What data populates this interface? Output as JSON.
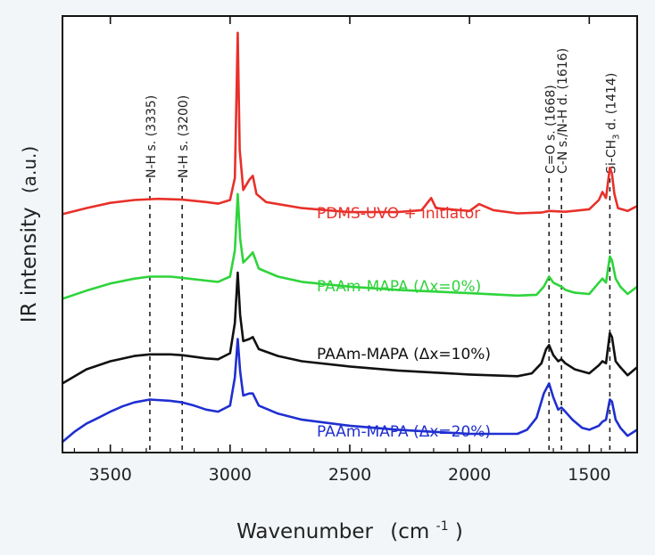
{
  "chart_data": {
    "type": "line",
    "title": "",
    "xlabel": "Wavenumber",
    "xlabel_unit": "(cm",
    "xlabel_exp": "-1",
    "xlabel_close": ")",
    "ylabel": "IR intensity",
    "ylabel_unit": "(a.u.)",
    "xlim": [
      3700,
      1300
    ],
    "x_reversed": true,
    "yticks_shown": false,
    "xticks": [
      {
        "value": 3500,
        "label": "3500"
      },
      {
        "value": 3000,
        "label": "3000"
      },
      {
        "value": 2500,
        "label": "2500"
      },
      {
        "value": 2000,
        "label": "2000"
      },
      {
        "value": 1500,
        "label": "1500"
      }
    ],
    "reference_lines": [
      {
        "x": 3335,
        "label": "N-H s. (3335)"
      },
      {
        "x": 3200,
        "label": "N-H s. (3200)"
      },
      {
        "x": 1668,
        "label": "C=O s. (1668)"
      },
      {
        "x": 1616,
        "label": "C-N s./N-H d. (1616)"
      },
      {
        "x": 1414,
        "label": "Si-CH",
        "sub": "3",
        "label_tail": " d. (1414)"
      }
    ],
    "series": [
      {
        "name": "PDMS-UVO + initiator",
        "color": "#e8302a",
        "offset": 5.65,
        "points": [
          [
            3700,
            0.0
          ],
          [
            3600,
            0.15
          ],
          [
            3500,
            0.28
          ],
          [
            3400,
            0.35
          ],
          [
            3300,
            0.38
          ],
          [
            3200,
            0.36
          ],
          [
            3100,
            0.3
          ],
          [
            3050,
            0.26
          ],
          [
            3000,
            0.35
          ],
          [
            2980,
            0.9
          ],
          [
            2968,
            4.5
          ],
          [
            2960,
            1.6
          ],
          [
            2945,
            0.6
          ],
          [
            2920,
            0.85
          ],
          [
            2905,
            0.95
          ],
          [
            2890,
            0.5
          ],
          [
            2850,
            0.3
          ],
          [
            2700,
            0.15
          ],
          [
            2500,
            0.05
          ],
          [
            2300,
            0.05
          ],
          [
            2200,
            0.1
          ],
          [
            2160,
            0.4
          ],
          [
            2140,
            0.15
          ],
          [
            2000,
            0.08
          ],
          [
            1960,
            0.25
          ],
          [
            1900,
            0.1
          ],
          [
            1800,
            0.02
          ],
          [
            1700,
            0.04
          ],
          [
            1668,
            0.08
          ],
          [
            1600,
            0.06
          ],
          [
            1500,
            0.12
          ],
          [
            1460,
            0.35
          ],
          [
            1445,
            0.55
          ],
          [
            1430,
            0.4
          ],
          [
            1414,
            1.15
          ],
          [
            1405,
            1.0
          ],
          [
            1395,
            0.5
          ],
          [
            1380,
            0.15
          ],
          [
            1340,
            0.08
          ],
          [
            1300,
            0.2
          ]
        ]
      },
      {
        "name": "PAAm-MAPA (Δx=0%)",
        "color": "#2fd43b",
        "offset": 3.55,
        "points": [
          [
            3700,
            0.0
          ],
          [
            3600,
            0.2
          ],
          [
            3500,
            0.38
          ],
          [
            3400,
            0.5
          ],
          [
            3335,
            0.55
          ],
          [
            3250,
            0.55
          ],
          [
            3200,
            0.52
          ],
          [
            3100,
            0.45
          ],
          [
            3050,
            0.42
          ],
          [
            3000,
            0.55
          ],
          [
            2980,
            1.2
          ],
          [
            2968,
            2.6
          ],
          [
            2958,
            1.5
          ],
          [
            2945,
            0.9
          ],
          [
            2920,
            1.05
          ],
          [
            2905,
            1.15
          ],
          [
            2880,
            0.75
          ],
          [
            2800,
            0.55
          ],
          [
            2700,
            0.42
          ],
          [
            2500,
            0.3
          ],
          [
            2300,
            0.22
          ],
          [
            2000,
            0.14
          ],
          [
            1800,
            0.08
          ],
          [
            1720,
            0.1
          ],
          [
            1690,
            0.3
          ],
          [
            1668,
            0.55
          ],
          [
            1650,
            0.4
          ],
          [
            1616,
            0.3
          ],
          [
            1600,
            0.22
          ],
          [
            1560,
            0.15
          ],
          [
            1500,
            0.12
          ],
          [
            1460,
            0.4
          ],
          [
            1445,
            0.5
          ],
          [
            1430,
            0.4
          ],
          [
            1414,
            1.05
          ],
          [
            1405,
            0.95
          ],
          [
            1390,
            0.5
          ],
          [
            1370,
            0.3
          ],
          [
            1340,
            0.12
          ],
          [
            1300,
            0.3
          ]
        ]
      },
      {
        "name": "PAAm-MAPA (Δx=10%)",
        "color": "#111111",
        "offset": 1.45,
        "points": [
          [
            3700,
            0.0
          ],
          [
            3600,
            0.35
          ],
          [
            3500,
            0.55
          ],
          [
            3400,
            0.68
          ],
          [
            3335,
            0.72
          ],
          [
            3250,
            0.72
          ],
          [
            3200,
            0.7
          ],
          [
            3100,
            0.62
          ],
          [
            3050,
            0.6
          ],
          [
            3000,
            0.75
          ],
          [
            2980,
            1.5
          ],
          [
            2968,
            2.75
          ],
          [
            2958,
            1.7
          ],
          [
            2945,
            1.05
          ],
          [
            2920,
            1.1
          ],
          [
            2905,
            1.15
          ],
          [
            2880,
            0.85
          ],
          [
            2800,
            0.68
          ],
          [
            2700,
            0.55
          ],
          [
            2500,
            0.42
          ],
          [
            2300,
            0.32
          ],
          [
            2000,
            0.22
          ],
          [
            1800,
            0.18
          ],
          [
            1740,
            0.25
          ],
          [
            1700,
            0.5
          ],
          [
            1680,
            0.85
          ],
          [
            1668,
            0.95
          ],
          [
            1650,
            0.7
          ],
          [
            1630,
            0.55
          ],
          [
            1616,
            0.6
          ],
          [
            1600,
            0.5
          ],
          [
            1560,
            0.35
          ],
          [
            1500,
            0.25
          ],
          [
            1460,
            0.45
          ],
          [
            1445,
            0.55
          ],
          [
            1430,
            0.5
          ],
          [
            1414,
            1.25
          ],
          [
            1405,
            1.15
          ],
          [
            1390,
            0.55
          ],
          [
            1370,
            0.4
          ],
          [
            1340,
            0.2
          ],
          [
            1300,
            0.4
          ]
        ]
      },
      {
        "name": "PAAm-MAPA (Δx=20%)",
        "color": "#1f2fd0",
        "offset": 0.0,
        "points": [
          [
            3700,
            0.0
          ],
          [
            3650,
            0.25
          ],
          [
            3600,
            0.45
          ],
          [
            3550,
            0.6
          ],
          [
            3500,
            0.75
          ],
          [
            3450,
            0.88
          ],
          [
            3400,
            0.98
          ],
          [
            3335,
            1.05
          ],
          [
            3250,
            1.02
          ],
          [
            3200,
            0.98
          ],
          [
            3150,
            0.9
          ],
          [
            3100,
            0.8
          ],
          [
            3050,
            0.75
          ],
          [
            3000,
            0.9
          ],
          [
            2980,
            1.6
          ],
          [
            2968,
            2.55
          ],
          [
            2958,
            1.75
          ],
          [
            2945,
            1.15
          ],
          [
            2920,
            1.2
          ],
          [
            2905,
            1.2
          ],
          [
            2880,
            0.9
          ],
          [
            2800,
            0.7
          ],
          [
            2700,
            0.55
          ],
          [
            2500,
            0.4
          ],
          [
            2300,
            0.3
          ],
          [
            2000,
            0.2
          ],
          [
            1800,
            0.2
          ],
          [
            1760,
            0.3
          ],
          [
            1720,
            0.6
          ],
          [
            1690,
            1.2
          ],
          [
            1668,
            1.45
          ],
          [
            1650,
            1.1
          ],
          [
            1630,
            0.8
          ],
          [
            1616,
            0.85
          ],
          [
            1600,
            0.75
          ],
          [
            1570,
            0.55
          ],
          [
            1530,
            0.35
          ],
          [
            1500,
            0.3
          ],
          [
            1460,
            0.4
          ],
          [
            1445,
            0.5
          ],
          [
            1430,
            0.55
          ],
          [
            1414,
            1.05
          ],
          [
            1405,
            1.0
          ],
          [
            1390,
            0.55
          ],
          [
            1370,
            0.35
          ],
          [
            1340,
            0.15
          ],
          [
            1300,
            0.3
          ]
        ]
      }
    ]
  }
}
